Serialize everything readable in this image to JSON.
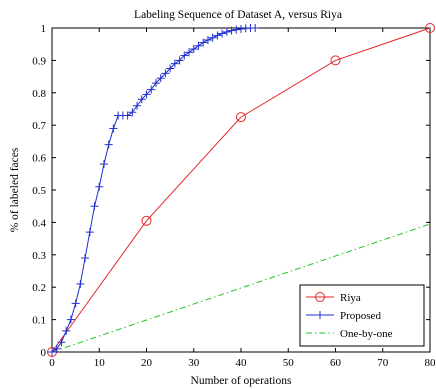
{
  "chart_data": {
    "type": "line",
    "title": "Labeling Sequence of Dataset A, versus Riya",
    "xlabel": "Number of operations",
    "ylabel": "% of labeled faces",
    "xlim": [
      0,
      80
    ],
    "ylim": [
      0,
      1
    ],
    "xticks": [
      0,
      10,
      20,
      30,
      40,
      50,
      60,
      70,
      80
    ],
    "yticks": [
      0,
      0.1,
      0.2,
      0.3,
      0.4,
      0.5,
      0.6,
      0.7,
      0.8,
      0.9,
      1
    ],
    "grid": false,
    "legend_position": "bottom-right",
    "series": [
      {
        "name": "Riya",
        "color": "#e8262b",
        "marker": "circle",
        "line_style": "solid",
        "x": [
          0,
          20,
          40,
          60,
          80
        ],
        "y": [
          0,
          0.405,
          0.725,
          0.9,
          1.0
        ]
      },
      {
        "name": "Proposed",
        "color": "#1f2fd0",
        "marker": "plus",
        "line_style": "solid",
        "x": [
          0,
          1,
          2,
          3,
          4,
          5,
          6,
          7,
          8,
          9,
          10,
          11,
          12,
          13,
          14,
          15,
          16,
          17,
          18,
          19,
          20,
          21,
          22,
          23,
          24,
          25,
          26,
          27,
          28,
          29,
          30,
          31,
          32,
          33,
          34,
          35,
          36,
          37,
          38,
          39,
          40,
          41,
          42,
          43
        ],
        "y": [
          0,
          0.01,
          0.03,
          0.065,
          0.1,
          0.15,
          0.21,
          0.29,
          0.37,
          0.45,
          0.51,
          0.58,
          0.64,
          0.69,
          0.73,
          0.73,
          0.73,
          0.74,
          0.76,
          0.78,
          0.795,
          0.81,
          0.83,
          0.845,
          0.86,
          0.875,
          0.89,
          0.9,
          0.915,
          0.925,
          0.935,
          0.945,
          0.955,
          0.963,
          0.97,
          0.977,
          0.983,
          0.988,
          0.992,
          0.995,
          0.997,
          0.999,
          1.0,
          1.0
        ]
      },
      {
        "name": "One-by-one",
        "color": "#22c322",
        "marker": "none",
        "line_style": "dashdot",
        "x": [
          0,
          80
        ],
        "y": [
          0,
          0.395
        ]
      }
    ]
  }
}
